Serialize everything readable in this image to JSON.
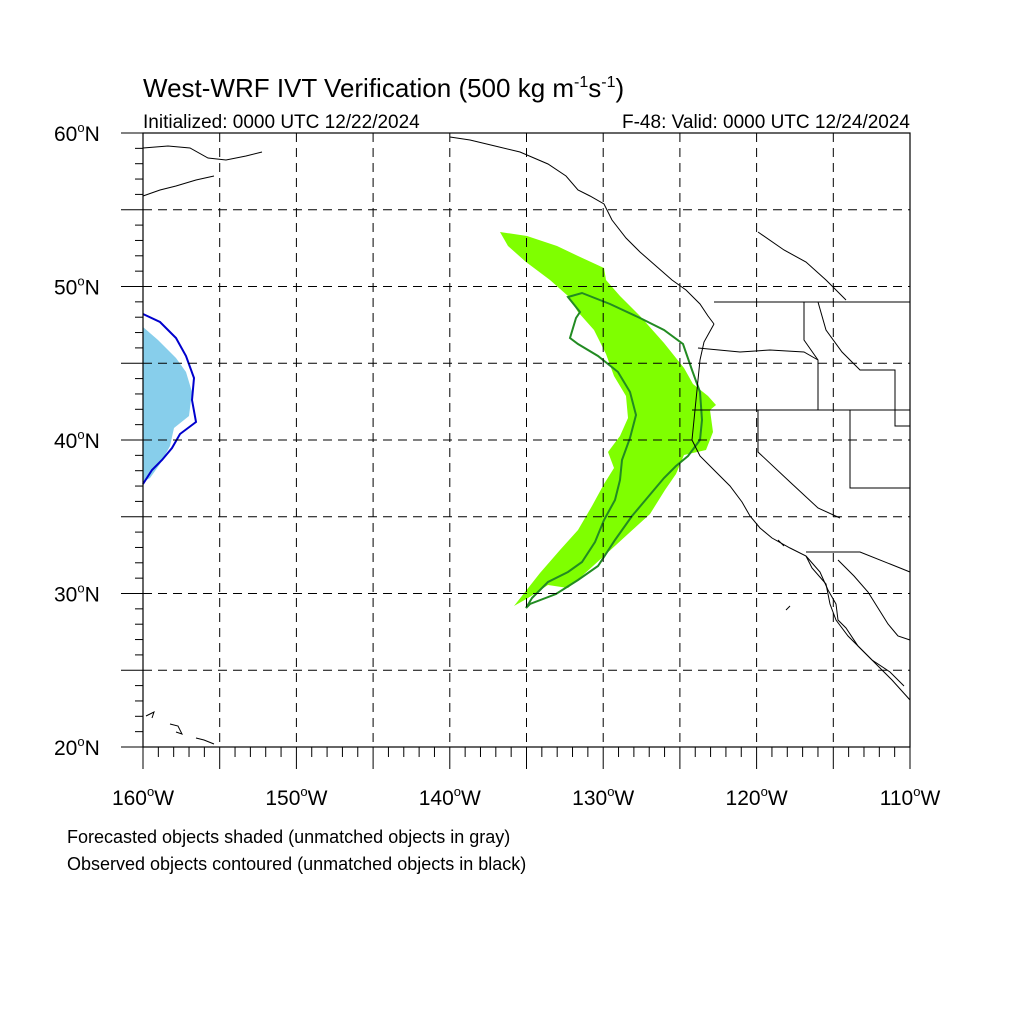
{
  "title": {
    "main": "West-WRF IVT Verification (500 kg m",
    "sup1": "-1",
    "mid": "s",
    "sup2": "-1",
    "close": ")"
  },
  "subtitle": {
    "left": "Initialized: 0000 UTC 12/22/2024",
    "right": "F-48: Valid: 0000 UTC 12/24/2024"
  },
  "map": {
    "lon_range": [
      -160,
      -110
    ],
    "lat_range": [
      20,
      60
    ],
    "lat_labels": [
      {
        "lat": 60,
        "text": "60",
        "hemi": "N"
      },
      {
        "lat": 50,
        "text": "50",
        "hemi": "N"
      },
      {
        "lat": 40,
        "text": "40",
        "hemi": "N"
      },
      {
        "lat": 30,
        "text": "30",
        "hemi": "N"
      },
      {
        "lat": 20,
        "text": "20",
        "hemi": "N"
      }
    ],
    "lon_labels": [
      {
        "lon": -160,
        "text": "160",
        "hemi": "W"
      },
      {
        "lon": -150,
        "text": "150",
        "hemi": "W"
      },
      {
        "lon": -140,
        "text": "140",
        "hemi": "W"
      },
      {
        "lon": -130,
        "text": "130",
        "hemi": "W"
      },
      {
        "lon": -120,
        "text": "120",
        "hemi": "W"
      },
      {
        "lon": -110,
        "text": "110",
        "hemi": "W"
      }
    ],
    "grid_lons": [
      -155,
      -150,
      -145,
      -140,
      -135,
      -130,
      -125,
      -120,
      -115
    ],
    "grid_lats": [
      25,
      30,
      35,
      40,
      45,
      50,
      55
    ],
    "colors": {
      "matched_forecast_fill": "#7fff00",
      "matched_observed_contour": "#228b22",
      "forecast_fill_2": "#87ceeb",
      "observed_contour_2": "#0000cd"
    }
  },
  "footnotes": [
    "Forecasted objects shaded (unmatched objects in gray)",
    "Observed objects contoured (unmatched objects in black)"
  ]
}
